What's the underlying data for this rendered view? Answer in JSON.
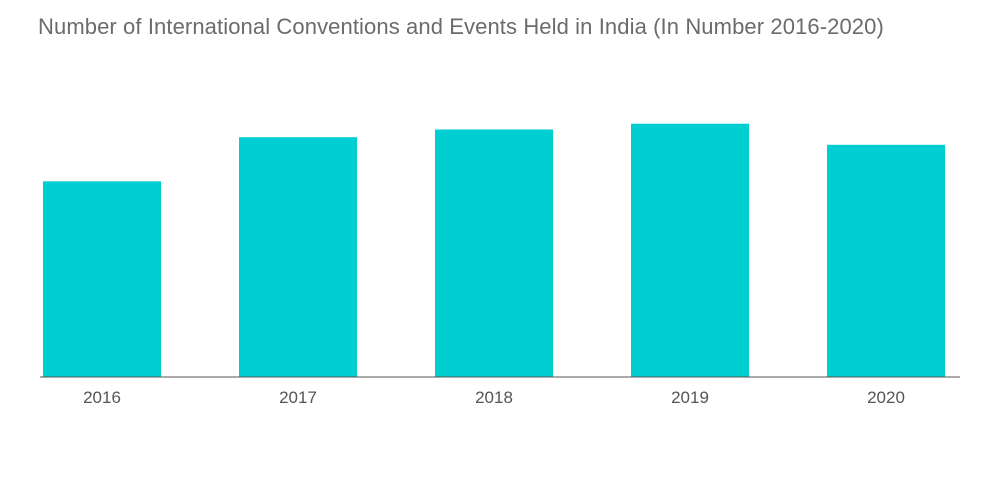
{
  "chart_data": {
    "type": "bar",
    "title": "Number of International Conventions and Events Held in India (In Number 2016-2020)",
    "categories": [
      "2016",
      "2017",
      "2018",
      "2019",
      "2020"
    ],
    "values": [
      102,
      125,
      129,
      132,
      121
    ],
    "ylim": [
      0,
      160
    ],
    "xlabel": "",
    "ylabel": "",
    "grid": false,
    "legend": "none",
    "bar_color": "#00CED1",
    "axis_color": "#555555"
  }
}
